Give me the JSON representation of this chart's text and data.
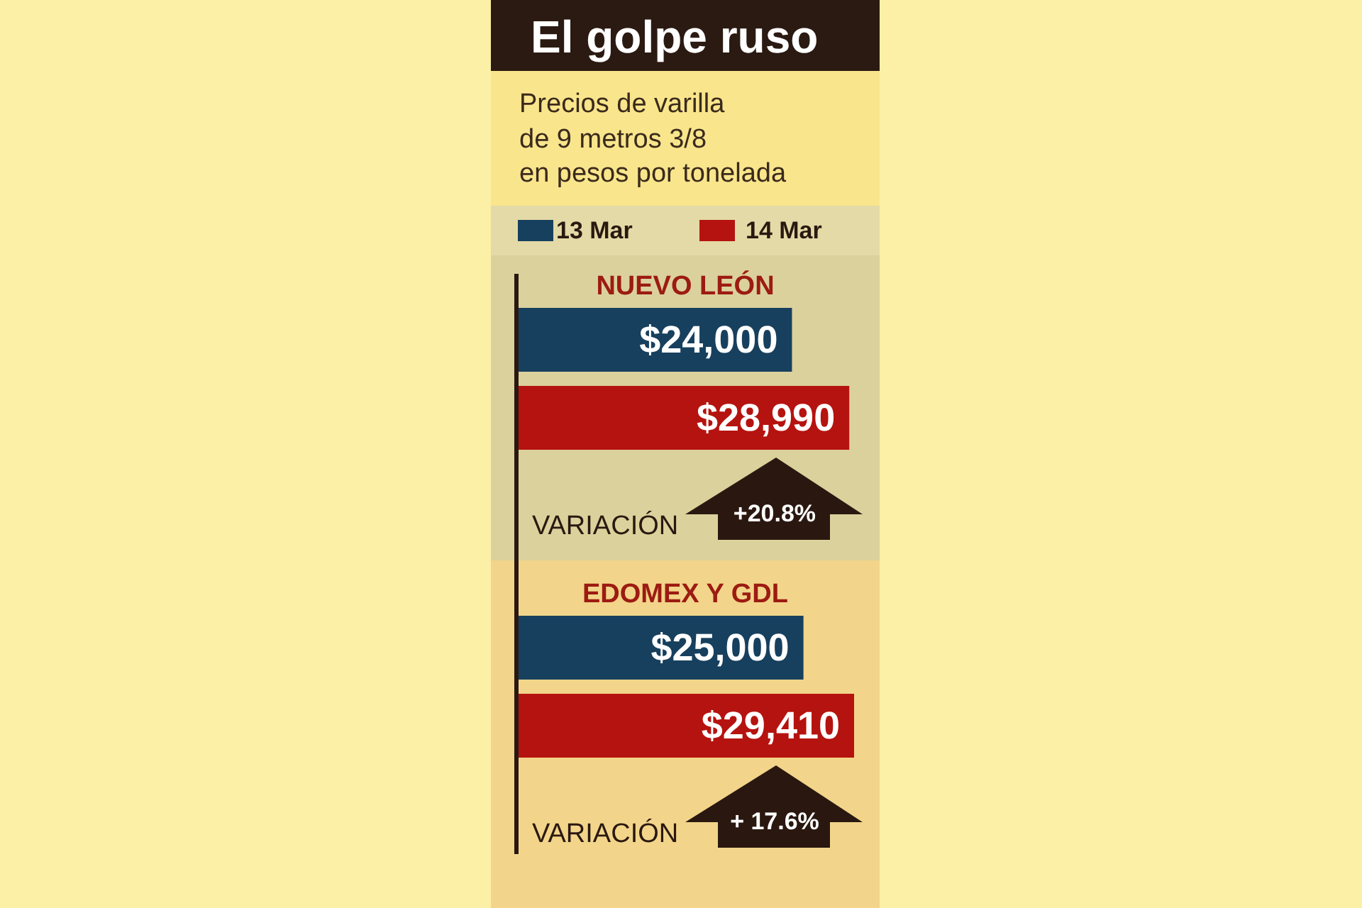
{
  "chart_data": {
    "type": "bar",
    "orientation": "horizontal",
    "title": "El golpe ruso",
    "subtitle": "Precios de varilla\nde 9 metros 3/8\nen pesos por tonelada",
    "categories": [
      "NUEVO LEÓN",
      "EDOMEX Y GDL"
    ],
    "series": [
      {
        "name": "13 Mar",
        "color": "#17405e",
        "values": [
          24000,
          25000
        ],
        "value_labels": [
          "$24,000",
          "$25,000"
        ]
      },
      {
        "name": "14 Mar",
        "color": "#b5130f",
        "values": [
          28990,
          29410
        ],
        "value_labels": [
          "$28,990",
          "$29,410"
        ]
      }
    ],
    "legend": "top",
    "annotations": [
      "VARIACIÓN",
      "+20.8%",
      "VARIACIÓN",
      "+ 17.6%"
    ]
  }
}
